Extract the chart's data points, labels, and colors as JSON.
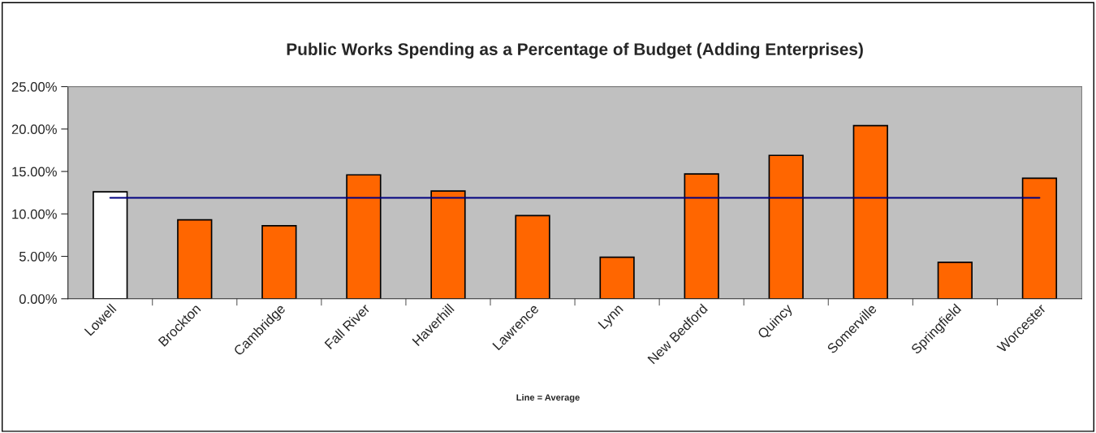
{
  "chart_data": {
    "type": "bar",
    "title": "Public Works Spending as a Percentage of Budget (Adding Enterprises)",
    "categories": [
      "Lowell",
      "Brockton",
      "Cambridge",
      "Fall River",
      "Haverhill",
      "Lawrence",
      "Lynn",
      "New Bedford",
      "Quincy",
      "Somerville",
      "Springfield",
      "Worcester"
    ],
    "series": [
      {
        "colors": [
          "#ffffff",
          "#ff6600",
          "#ff6600",
          "#ff6600",
          "#ff6600",
          "#ff6600",
          "#ff6600",
          "#ff6600",
          "#ff6600",
          "#ff6600",
          "#ff6600",
          "#ff6600"
        ],
        "values": [
          12.6,
          9.3,
          8.6,
          14.6,
          12.7,
          9.8,
          4.9,
          14.7,
          16.9,
          20.4,
          4.3,
          14.2
        ]
      },
      {
        "type": "line",
        "color": "#000080",
        "values": [
          11.9,
          11.9,
          11.9,
          11.9,
          11.9,
          11.9,
          11.9,
          11.9,
          11.9,
          11.9,
          11.9,
          11.9
        ]
      }
    ],
    "ylim": [
      0,
      25
    ],
    "yticks": [
      {
        "value": 0,
        "label": "0.00%"
      },
      {
        "value": 5,
        "label": "5.00%"
      },
      {
        "value": 10,
        "label": "10.00%"
      },
      {
        "value": 15,
        "label": "15.00%"
      },
      {
        "value": 20,
        "label": "20.00%"
      },
      {
        "value": 25,
        "label": "25.00%"
      }
    ],
    "grid": false,
    "legend": false,
    "annotations": [
      "Line = Average"
    ]
  }
}
